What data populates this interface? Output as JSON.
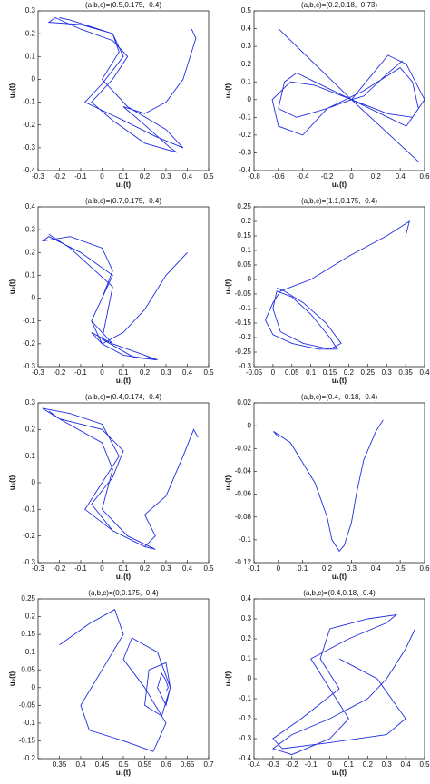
{
  "chart_data": [
    {
      "type": "line",
      "title": "(a,b,c)=(0.5,0.175,−0.4)",
      "xlabel": "u₁(t)",
      "ylabel": "u₂(t)",
      "xlim": [
        -0.3,
        0.5
      ],
      "xticks": [
        -0.3,
        -0.2,
        -0.1,
        0,
        0.1,
        0.2,
        0.3,
        0.4,
        0.5
      ],
      "ylim": [
        -0.4,
        0.3
      ],
      "yticks": [
        -0.4,
        -0.3,
        -0.2,
        -0.1,
        0,
        0.1,
        0.2,
        0.3
      ],
      "color": "#1f2ee0",
      "x": [
        0.42,
        0.44,
        0.38,
        0.3,
        0.2,
        0.1,
        0.2,
        0.32,
        0.35,
        0.2,
        0.05,
        -0.05,
        0.05,
        0.12,
        0.05,
        -0.1,
        -0.22,
        -0.25,
        -0.1,
        0.05,
        0.1,
        0.0,
        -0.08,
        0.1,
        0.25,
        0.38,
        0.3,
        0.12,
        0.0,
        0.08,
        0.05,
        -0.15,
        -0.2
      ],
      "values": [
        0.22,
        0.18,
        0.0,
        -0.1,
        -0.15,
        -0.12,
        -0.2,
        -0.3,
        -0.32,
        -0.28,
        -0.18,
        -0.1,
        0.0,
        0.1,
        0.17,
        0.22,
        0.27,
        0.25,
        0.24,
        0.2,
        0.1,
        -0.02,
        -0.1,
        -0.18,
        -0.25,
        -0.3,
        -0.22,
        -0.12,
        0.0,
        0.12,
        0.2,
        0.26,
        0.27
      ]
    },
    {
      "type": "line",
      "title": "(a,b,c)=(0.2,0.18,−0.73)",
      "xlabel": "u₁(t)",
      "ylabel": "u₂(t)",
      "xlim": [
        -0.8,
        0.6
      ],
      "xticks": [
        -0.8,
        -0.6,
        -0.4,
        -0.2,
        0,
        0.2,
        0.4,
        0.6
      ],
      "ylim": [
        -0.4,
        0.5
      ],
      "yticks": [
        -0.4,
        -0.3,
        -0.2,
        -0.1,
        0,
        0.1,
        0.2,
        0.3,
        0.4,
        0.5
      ],
      "color": "#1f2ee0",
      "x": [
        0.42,
        0.3,
        0.1,
        0.0,
        -0.2,
        -0.45,
        -0.6,
        -0.55,
        -0.45,
        -0.3,
        0.0,
        0.3,
        0.45,
        0.55,
        0.5,
        0.4,
        0.1,
        -0.2,
        -0.4,
        -0.6,
        -0.65,
        -0.5,
        -0.3,
        0.0,
        0.3,
        0.5,
        0.6,
        0.45,
        0.3,
        0.0,
        -0.6,
        0.0,
        0.55
      ],
      "values": [
        0.22,
        0.15,
        0.02,
        0.0,
        -0.05,
        -0.1,
        -0.05,
        0.1,
        0.15,
        0.1,
        0.0,
        -0.1,
        -0.15,
        -0.05,
        0.1,
        0.18,
        0.05,
        -0.05,
        -0.2,
        -0.15,
        0.0,
        0.1,
        0.08,
        0.0,
        -0.08,
        -0.1,
        0.0,
        0.2,
        0.25,
        0.0,
        0.4,
        0.0,
        -0.35
      ]
    },
    {
      "type": "line",
      "title": "(a,b,c)=(0.7,0.175,−0.4)",
      "xlabel": "u₁(t)",
      "ylabel": "u₂(t)",
      "xlim": [
        -0.3,
        0.5
      ],
      "xticks": [
        -0.3,
        -0.2,
        -0.1,
        0,
        0.1,
        0.2,
        0.3,
        0.4,
        0.5
      ],
      "ylim": [
        -0.3,
        0.4
      ],
      "yticks": [
        -0.3,
        -0.2,
        -0.1,
        0,
        0.1,
        0.2,
        0.3,
        0.4
      ],
      "color": "#1f2ee0",
      "x": [
        0.4,
        0.3,
        0.2,
        0.1,
        0.0,
        -0.05,
        0.05,
        0.2,
        0.25,
        0.1,
        0.0,
        -0.05,
        0.0,
        0.05,
        -0.1,
        -0.25,
        -0.28,
        -0.15,
        0.0,
        0.05,
        0.0,
        -0.05,
        0.05,
        0.2,
        0.26,
        0.15,
        0.0,
        0.05,
        -0.15,
        -0.25
      ],
      "values": [
        0.2,
        0.1,
        -0.05,
        -0.15,
        -0.2,
        -0.15,
        -0.2,
        -0.25,
        -0.27,
        -0.25,
        -0.2,
        -0.1,
        0.0,
        0.1,
        0.2,
        0.27,
        0.25,
        0.27,
        0.22,
        0.12,
        0.0,
        -0.1,
        -0.2,
        -0.25,
        -0.27,
        -0.26,
        -0.18,
        0.05,
        0.22,
        0.28
      ]
    },
    {
      "type": "line",
      "title": "(a,b,c)=(1.1,0.175,−0.4)",
      "xlabel": "u₁(t)",
      "ylabel": "u₂(t)",
      "xlim": [
        -0.05,
        0.4
      ],
      "xticks": [
        -0.05,
        0,
        0.05,
        0.1,
        0.15,
        0.2,
        0.25,
        0.3,
        0.35,
        0.4
      ],
      "ylim": [
        -0.3,
        0.25
      ],
      "yticks": [
        -0.3,
        -0.25,
        -0.2,
        -0.15,
        -0.1,
        -0.05,
        0,
        0.05,
        0.1,
        0.15,
        0.2,
        0.25
      ],
      "color": "#1f2ee0",
      "x": [
        0.35,
        0.36,
        0.3,
        0.2,
        0.1,
        0.02,
        0.0,
        -0.02,
        0.0,
        0.05,
        0.12,
        0.17,
        0.15,
        0.1,
        0.05,
        0.01,
        0.0,
        0.02,
        0.08,
        0.15,
        0.18,
        0.14,
        0.08,
        0.03,
        0.01
      ],
      "values": [
        0.15,
        0.2,
        0.15,
        0.08,
        0.0,
        -0.04,
        -0.08,
        -0.14,
        -0.19,
        -0.22,
        -0.24,
        -0.24,
        -0.2,
        -0.12,
        -0.06,
        -0.04,
        -0.1,
        -0.18,
        -0.22,
        -0.24,
        -0.22,
        -0.15,
        -0.08,
        -0.04,
        -0.03
      ]
    },
    {
      "type": "line",
      "title": "(a,b,c)=(0.4,0.174,−0.4)",
      "xlabel": "u₁(t)",
      "ylabel": "u₂(t)",
      "xlim": [
        -0.3,
        0.5
      ],
      "xticks": [
        -0.3,
        -0.2,
        -0.1,
        0,
        0.1,
        0.2,
        0.3,
        0.4,
        0.5
      ],
      "ylim": [
        -0.3,
        0.3
      ],
      "yticks": [
        -0.3,
        -0.2,
        -0.1,
        0,
        0.1,
        0.2,
        0.3
      ],
      "color": "#1f2ee0",
      "x": [
        0.45,
        0.43,
        0.38,
        0.3,
        0.2,
        0.25,
        0.2,
        0.05,
        -0.05,
        0.05,
        0.1,
        0.0,
        -0.2,
        -0.28,
        -0.15,
        0.0,
        0.08,
        0.0,
        -0.08,
        0.05,
        0.2,
        0.25,
        0.12,
        0.0,
        0.05,
        0.0,
        -0.2,
        -0.25
      ],
      "values": [
        0.17,
        0.2,
        0.1,
        -0.05,
        -0.12,
        -0.2,
        -0.24,
        -0.18,
        -0.08,
        0.02,
        0.12,
        0.2,
        0.24,
        0.28,
        0.26,
        0.22,
        0.1,
        0.0,
        -0.1,
        -0.18,
        -0.24,
        -0.25,
        -0.2,
        -0.1,
        0.05,
        0.15,
        0.24,
        0.27
      ]
    },
    {
      "type": "line",
      "title": "(a,b,c)=(0.4,−0.18,−0.4)",
      "xlabel": "u₁(t)",
      "ylabel": "u₂(t)",
      "xlim": [
        -0.1,
        0.6
      ],
      "xticks": [
        -0.1,
        0,
        0.1,
        0.2,
        0.3,
        0.4,
        0.5,
        0.6
      ],
      "ylim": [
        -0.12,
        0.02
      ],
      "yticks": [
        -0.12,
        -0.1,
        -0.08,
        -0.06,
        -0.04,
        -0.02,
        0,
        0.02
      ],
      "color": "#1f2ee0",
      "x": [
        0.43,
        0.4,
        0.35,
        0.32,
        0.3,
        0.27,
        0.25,
        0.22,
        0.2,
        0.15,
        0.05,
        -0.02,
        0.0
      ],
      "values": [
        0.005,
        -0.005,
        -0.03,
        -0.06,
        -0.085,
        -0.105,
        -0.11,
        -0.1,
        -0.08,
        -0.05,
        -0.015,
        -0.005,
        -0.01
      ]
    },
    {
      "type": "line",
      "title": "(a,b,c)=(0,0.175,−0.4)",
      "xlabel": "u₁(t)",
      "ylabel": "u₂(t)",
      "xlim": [
        0.3,
        0.7
      ],
      "xticks": [
        0.35,
        0.4,
        0.45,
        0.5,
        0.55,
        0.6,
        0.65,
        0.7
      ],
      "ylim": [
        -0.2,
        0.25
      ],
      "yticks": [
        -0.2,
        -0.15,
        -0.1,
        -0.05,
        0,
        0.05,
        0.1,
        0.15,
        0.2,
        0.25
      ],
      "color": "#1f2ee0",
      "x": [
        0.35,
        0.42,
        0.48,
        0.5,
        0.45,
        0.4,
        0.42,
        0.5,
        0.57,
        0.6,
        0.55,
        0.5,
        0.52,
        0.58,
        0.61,
        0.59,
        0.55,
        0.56,
        0.6,
        0.61,
        0.6,
        0.58,
        0.59,
        0.6,
        0.605,
        0.6
      ],
      "values": [
        0.12,
        0.18,
        0.22,
        0.15,
        0.05,
        -0.05,
        -0.12,
        -0.15,
        -0.18,
        -0.1,
        0.0,
        0.08,
        0.14,
        0.1,
        0.0,
        -0.08,
        -0.05,
        0.05,
        0.07,
        0.0,
        -0.05,
        0.0,
        0.04,
        0.02,
        0.0,
        -0.01
      ]
    },
    {
      "type": "line",
      "title": "(a,b,c)=(0.4,0.18,−0.4)",
      "xlabel": "u₁(t)",
      "ylabel": "u₂(t)",
      "xlim": [
        -0.4,
        0.5
      ],
      "xticks": [
        -0.4,
        -0.3,
        -0.2,
        -0.1,
        0,
        0.1,
        0.2,
        0.3,
        0.4,
        0.5
      ],
      "ylim": [
        -0.4,
        0.4
      ],
      "yticks": [
        -0.4,
        -0.3,
        -0.2,
        -0.1,
        0,
        0.1,
        0.2,
        0.3,
        0.4
      ],
      "color": "#1f2ee0",
      "x": [
        0.45,
        0.4,
        0.3,
        0.2,
        0.0,
        -0.2,
        -0.3,
        -0.2,
        0.0,
        0.1,
        0.0,
        -0.1,
        0.1,
        0.3,
        0.35,
        0.2,
        0.0,
        -0.05,
        0.05,
        -0.15,
        -0.3,
        -0.25,
        0.0,
        0.3,
        0.4,
        0.25,
        0.05
      ],
      "values": [
        0.25,
        0.15,
        0.0,
        -0.1,
        -0.2,
        -0.28,
        -0.35,
        -0.38,
        -0.3,
        -0.2,
        -0.05,
        0.1,
        0.2,
        0.28,
        0.32,
        0.3,
        0.25,
        0.1,
        -0.05,
        -0.2,
        -0.3,
        -0.35,
        -0.32,
        -0.28,
        -0.2,
        0.0,
        0.1
      ]
    }
  ]
}
